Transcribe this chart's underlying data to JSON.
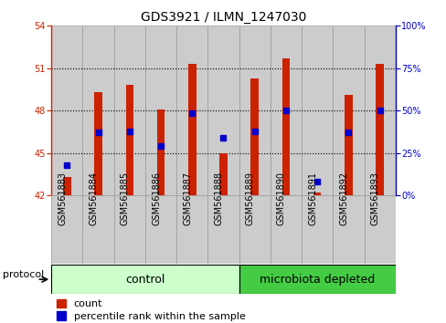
{
  "title": "GDS3921 / ILMN_1247030",
  "categories": [
    "GSM561883",
    "GSM561884",
    "GSM561885",
    "GSM561886",
    "GSM561887",
    "GSM561888",
    "GSM561889",
    "GSM561890",
    "GSM561891",
    "GSM561892",
    "GSM561893"
  ],
  "count_values": [
    43.3,
    49.3,
    49.8,
    48.1,
    51.3,
    45.0,
    50.3,
    51.7,
    42.2,
    49.1,
    51.3
  ],
  "percentile_values": [
    18.0,
    37.0,
    38.0,
    29.0,
    48.5,
    34.0,
    38.0,
    50.0,
    8.0,
    37.0,
    50.0
  ],
  "ylim_left": [
    42,
    54
  ],
  "ylim_right": [
    0,
    100
  ],
  "yticks_left": [
    42,
    45,
    48,
    51,
    54
  ],
  "yticks_right": [
    0,
    25,
    50,
    75,
    100
  ],
  "bar_color": "#cc2200",
  "percentile_color": "#0000cc",
  "control_count": 6,
  "microbiota_count": 5,
  "control_label": "control",
  "microbiota_label": "microbiota depleted",
  "control_color": "#ccffcc",
  "microbiota_color": "#44cc44",
  "protocol_label": "protocol",
  "legend_count": "count",
  "legend_percentile": "percentile rank within the sample",
  "background_color": "#ffffff",
  "bar_bg_color": "#cccccc",
  "col_border_color": "#999999",
  "baseline": 42,
  "bar_width": 0.25,
  "dotted_lines": [
    45,
    48,
    51
  ],
  "title_fontsize": 10,
  "tick_fontsize": 7,
  "label_fontsize": 8,
  "group_fontsize": 9
}
